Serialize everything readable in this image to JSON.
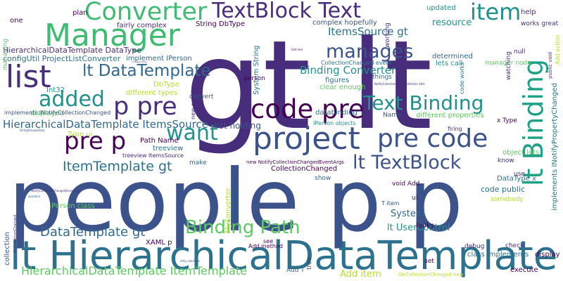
{
  "words": [
    {
      "text": "gt lt",
      "color": "#472d7b"
    },
    {
      "text": "people p p",
      "color": "#3b528b"
    },
    {
      "text": "lt HierarchicalDataTemplate",
      "color": "#2c728e"
    },
    {
      "text": "Manager",
      "color": "#3fbc73"
    },
    {
      "text": "Converter",
      "color": "#3fbc73"
    },
    {
      "text": "TextBlock Text",
      "color": "#472d7b"
    },
    {
      "text": "item",
      "color": "#21918c"
    },
    {
      "text": "manages",
      "color": "#3b528b"
    },
    {
      "text": "list",
      "color": "#472d7b"
    },
    {
      "text": "lt DataTemplate",
      "color": "#31688e"
    },
    {
      "text": "added",
      "color": "#21918c"
    },
    {
      "text": "p pre",
      "color": "#472d7b"
    },
    {
      "text": "code pre",
      "color": "#440154"
    },
    {
      "text": "Text Binding",
      "color": "#21918c"
    },
    {
      "text": "lt Binding",
      "color": "#1fa187"
    },
    {
      "text": "want",
      "color": "#21918c"
    },
    {
      "text": "project",
      "color": "#3b528b"
    },
    {
      "text": "pre code",
      "color": "#3b528b"
    },
    {
      "text": "pre p",
      "color": "#440154"
    },
    {
      "text": "lt TextBlock",
      "color": "#3b528b"
    },
    {
      "text": "ItemTemplate gt",
      "color": "#2c728e"
    },
    {
      "text": "Binding Path",
      "color": "#5ec962"
    },
    {
      "text": "DataTemplate gt",
      "color": "#31688e"
    },
    {
      "text": "HierarchicalDataTemplate ItemTemplate",
      "color": "#5ec962"
    },
    {
      "text": "HierarchicalDataTemplate ItemsSource",
      "color": "#31688e"
    },
    {
      "text": "Binding Converter",
      "color": "#21918c"
    },
    {
      "text": "ItemsSource gt",
      "color": "#2c728e"
    },
    {
      "text": "HierarchicalDataTemplate DataType",
      "color": "#472d7b"
    },
    {
      "text": "configUtil ProjectListConverter",
      "color": "#2c728e"
    },
    {
      "text": "String DbType",
      "color": "#440154"
    },
    {
      "text": "complex hopefully",
      "color": "#3b528b"
    },
    {
      "text": "fairly complex",
      "color": "#472d7b"
    },
    {
      "text": "implement IPerson",
      "color": "#31688e"
    },
    {
      "text": "resource",
      "color": "#21918c"
    },
    {
      "text": "updated",
      "color": "#21918c"
    },
    {
      "text": "help",
      "color": "#472d7b"
    },
    {
      "text": "works great",
      "color": "#472d7b"
    },
    {
      "text": "plan",
      "color": "#440154"
    },
    {
      "text": "one",
      "color": "#440154"
    },
    {
      "text": "list holding",
      "color": "#3b528b"
    },
    {
      "text": "figures",
      "color": "#2c728e"
    },
    {
      "text": "things",
      "color": "#2c728e"
    },
    {
      "text": "clear enough",
      "color": "#5ec962"
    },
    {
      "text": "databinding",
      "color": "#2c728e"
    },
    {
      "text": "determined",
      "color": "#31688e"
    },
    {
      "text": "lets call",
      "color": "#21918c"
    },
    {
      "text": "null",
      "color": "#472d7b"
    },
    {
      "text": "manager node",
      "color": "#5ec962"
    },
    {
      "text": "Int32",
      "color": "#21918c"
    },
    {
      "text": "DbType",
      "color": "#b5de2b"
    },
    {
      "text": "different types",
      "color": "#b5de2b"
    },
    {
      "text": "convert",
      "color": "#3b528b"
    },
    {
      "text": "person",
      "color": "#440154"
    },
    {
      "text": "displayed",
      "color": "#5ec962"
    },
    {
      "text": "implements INotifyCollectionChanged",
      "color": "#3b528b"
    },
    {
      "text": "IPerson objects",
      "color": "#21918c"
    },
    {
      "text": "different properties",
      "color": "#5ec962"
    },
    {
      "text": "x Type",
      "color": "#440154"
    },
    {
      "text": "Name",
      "color": "#3b528b"
    },
    {
      "text": "firing",
      "color": "#472d7b"
    },
    {
      "text": "Type ui",
      "color": "#b5de2b"
    },
    {
      "text": "Path Name",
      "color": "#440154"
    },
    {
      "text": "treeview",
      "color": "#2c728e"
    },
    {
      "text": "treeview ItemsSource",
      "color": "#472d7b"
    },
    {
      "text": "make",
      "color": "#31688e"
    },
    {
      "text": "new NotifyCollectionChangedEventArgs",
      "color": "#440154"
    },
    {
      "text": "CollectionChanged",
      "color": "#440154"
    },
    {
      "text": "object lets",
      "color": "#5ec962"
    },
    {
      "text": "know",
      "color": "#472d7b"
    },
    {
      "text": "use",
      "color": "#472d7b"
    },
    {
      "text": "DataType x",
      "color": "#2c728e"
    },
    {
      "text": "code public",
      "color": "#2c728e"
    },
    {
      "text": "somebody",
      "color": "#b5de2b"
    },
    {
      "text": "show",
      "color": "#31688e"
    },
    {
      "text": "void Add",
      "color": "#440154"
    },
    {
      "text": "ui",
      "color": "#440154"
    },
    {
      "text": "System",
      "color": "#31688e"
    },
    {
      "text": "lt UserControl",
      "color": "#21918c"
    },
    {
      "text": "T item",
      "color": "#3b528b"
    },
    {
      "text": "looks",
      "color": "#440154"
    },
    {
      "text": "debug",
      "color": "#472d7b"
    },
    {
      "text": "check",
      "color": "#472d7b"
    },
    {
      "text": "class implements",
      "color": "#2c728e"
    },
    {
      "text": "display",
      "color": "#440154"
    },
    {
      "text": "Person class",
      "color": "#5ec962"
    },
    {
      "text": "XAML p",
      "color": "#440154"
    },
    {
      "text": "Add method",
      "color": "#440154"
    },
    {
      "text": "see",
      "color": "#440154"
    },
    {
      "text": "set",
      "color": "#440154"
    },
    {
      "text": "execute",
      "color": "#440154"
    },
    {
      "text": "Add T",
      "color": "#31688e"
    },
    {
      "text": "Add item",
      "color": "#b5de2b"
    },
    {
      "text": "managing",
      "color": "#5ec962"
    },
    {
      "text": "System String",
      "color": "#2c728e"
    },
    {
      "text": "working",
      "color": "#472d7b"
    },
    {
      "text": "watching",
      "color": "#472d7b"
    },
    {
      "text": "code works",
      "color": "#2c728e"
    },
    {
      "text": "public void",
      "color": "#472d7b"
    },
    {
      "text": "Add action",
      "color": "#b5de2b"
    },
    {
      "text": "implements INotifyPropertyChanged",
      "color": "#2c728e"
    },
    {
      "text": "collection",
      "color": "#3b528b"
    },
    {
      "text": "MyConverter",
      "color": "#b5de2b"
    },
    {
      "text": "new person",
      "color": "#472d7b"
    },
    {
      "text": "tree",
      "color": "#472d7b"
    },
    {
      "text": "OnCollectionChanged",
      "color": "#472d7b"
    },
    {
      "text": "OnCollectionChanged new",
      "color": "#b5de2b"
    },
    {
      "text": "CollectionChanged event",
      "color": "#2c728e"
    },
    {
      "text": "NotifyCollectionChangedAction Add",
      "color": "#472d7b"
    },
    {
      "text": "last one",
      "color": "#440154"
    },
    {
      "text": "corresponding",
      "color": "#472d7b"
    },
    {
      "text": "StraightLawsData",
      "color": "#3b528b"
    },
    {
      "text": "NotifyCollectionChangedEventArgs",
      "color": "#472d7b"
    },
    {
      "text": "question",
      "color": "#2c728e"
    },
    {
      "text": "dirty solutions",
      "color": "#3b528b"
    }
  ]
}
